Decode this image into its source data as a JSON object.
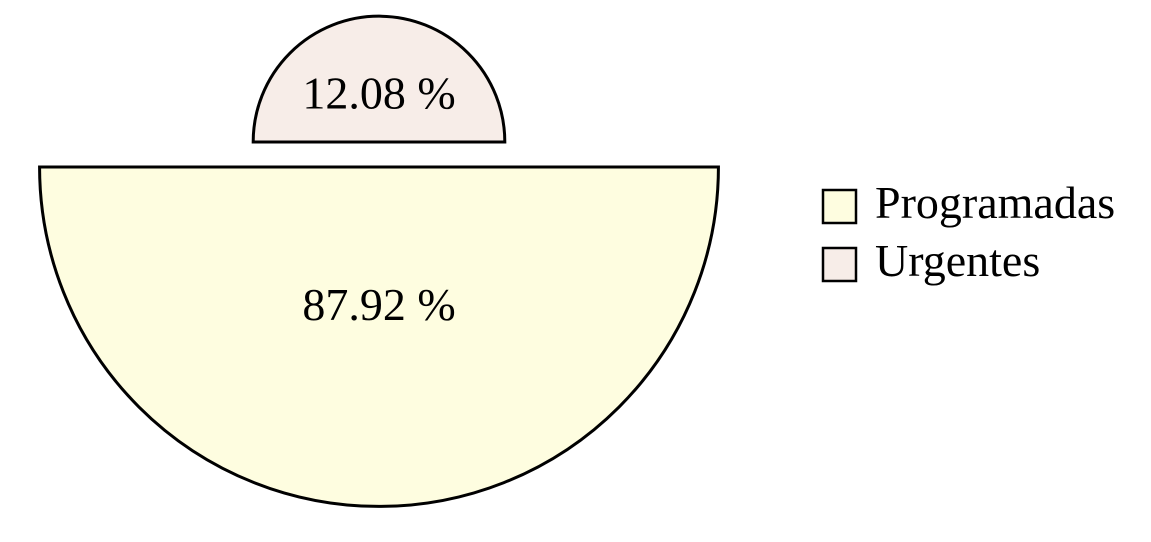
{
  "chart_data": {
    "type": "pie",
    "title": "",
    "series": [
      {
        "name": "Programadas",
        "value": 87.92,
        "label": "87.92 %",
        "color": "#fefde0"
      },
      {
        "name": "Urgentes",
        "value": 12.08,
        "label": "12.08 %",
        "color": "#f7ede8"
      }
    ],
    "legend": {
      "position": "right",
      "entries": [
        "Programadas",
        "Urgentes"
      ]
    },
    "stroke_color": "#000000"
  }
}
